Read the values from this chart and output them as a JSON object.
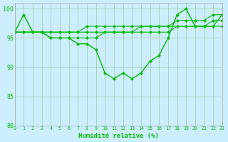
{
  "xlabel": "Humidité relative (%)",
  "bg_color": "#cceeff",
  "line_color": "#00bb00",
  "grid_color": "#99cc99",
  "ylim": [
    80,
    101
  ],
  "xlim": [
    0,
    23
  ],
  "yticks": [
    80,
    85,
    90,
    95,
    100
  ],
  "xticks": [
    0,
    1,
    2,
    3,
    4,
    5,
    6,
    7,
    8,
    9,
    10,
    11,
    12,
    13,
    14,
    15,
    16,
    17,
    18,
    19,
    20,
    21,
    22,
    23
  ],
  "series1": [
    96,
    99,
    96,
    96,
    95,
    95,
    95,
    94,
    94,
    93,
    89,
    88,
    89,
    88,
    89,
    91,
    92,
    95,
    99,
    100,
    97,
    97,
    97,
    99
  ],
  "series2": [
    96,
    96,
    96,
    96,
    96,
    96,
    96,
    96,
    96,
    96,
    96,
    96,
    96,
    96,
    97,
    97,
    97,
    97,
    97,
    97,
    97,
    97,
    98,
    98
  ],
  "series3": [
    96,
    96,
    96,
    96,
    96,
    96,
    96,
    96,
    97,
    97,
    97,
    97,
    97,
    97,
    97,
    97,
    97,
    97,
    98,
    98,
    98,
    98,
    99,
    99
  ],
  "series4": [
    96,
    96,
    96,
    96,
    95,
    95,
    95,
    95,
    95,
    95,
    96,
    96,
    96,
    96,
    96,
    96,
    96,
    96,
    97,
    97,
    97,
    97,
    97,
    97
  ]
}
